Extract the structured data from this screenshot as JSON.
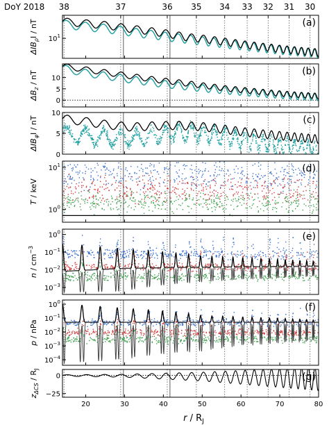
{
  "chart_data": {
    "type": "line",
    "xlabel": "r / R_J",
    "xlim": [
      14,
      80
    ],
    "x_ticks": [
      "20",
      "30",
      "40",
      "50",
      "60",
      "70",
      "80"
    ],
    "top_axis_label": "DoY 2018",
    "top_ticks": [
      {
        "label": "38",
        "r": 14.4
      },
      {
        "label": "37",
        "r": 29.0
      },
      {
        "label": "36",
        "r": 41.0
      },
      {
        "label": "35",
        "r": 48.5
      },
      {
        "label": "34",
        "r": 55.8
      },
      {
        "label": "33",
        "r": 61.6
      },
      {
        "label": "32",
        "r": 67.0
      },
      {
        "label": "31",
        "r": 72.4
      },
      {
        "label": "30",
        "r": 77.8
      }
    ],
    "vertical_markers_r": [
      29.7,
      41.7
    ],
    "dotted_markers_r": [
      14.4,
      29.0,
      41.0,
      48.5,
      55.8,
      61.6,
      67.0,
      72.4,
      77.8
    ],
    "colors": {
      "model": "#000000",
      "data": "#1a9e9e",
      "blue": "#3a6fcf",
      "red": "#d23a3a",
      "green": "#3aa04a"
    },
    "panels": [
      {
        "id": "a",
        "panel_label": "(a)",
        "ylabel_main": "ΔIB",
        "ylabel_sub": "ρ",
        "ylabel_tail": "I / nT",
        "scale": "log",
        "ylim": [
          3,
          40
        ],
        "y_ticks": [
          {
            "v": 10,
            "label": "10",
            "sup": "1"
          }
        ],
        "model": {
          "x": [
            14,
            18,
            22,
            26,
            30,
            34,
            38,
            42,
            46,
            50,
            55,
            60,
            65,
            70,
            75,
            80
          ],
          "y": [
            28,
            26,
            24,
            22,
            19,
            17,
            15,
            13,
            11,
            10,
            8.5,
            7.2,
            6.2,
            5.4,
            4.8,
            4.3
          ],
          "osc": 0.22
        },
        "observed": {
          "x": [
            14,
            18,
            22,
            26,
            30,
            34,
            38,
            42,
            46,
            50,
            55,
            60,
            65,
            70,
            75,
            80
          ],
          "y": [
            24,
            22,
            20,
            18,
            16,
            14,
            12.5,
            11,
            9.8,
            8.8,
            7.6,
            6.6,
            5.8,
            5.1,
            4.6,
            4.2
          ],
          "osc": 0.25
        }
      },
      {
        "id": "b",
        "panel_label": "(b)",
        "ylabel_main": "ΔB",
        "ylabel_sub": "z",
        "ylabel_tail": " / nT",
        "scale": "linear",
        "ylim": [
          -3,
          16
        ],
        "y_ticks": [
          {
            "v": 0,
            "label": "0"
          },
          {
            "v": 5,
            "label": "5"
          },
          {
            "v": 10,
            "label": "10"
          }
        ],
        "zero_line": true,
        "model": {
          "x": [
            14,
            20,
            26,
            32,
            38,
            44,
            50,
            56,
            62,
            68,
            74,
            80
          ],
          "y": [
            15,
            13.5,
            12,
            10.5,
            9,
            7.8,
            6.5,
            5.2,
            4.2,
            3.2,
            2.4,
            1.8
          ],
          "osc": 1.2
        },
        "observed": {
          "x": [
            14,
            20,
            26,
            32,
            38,
            44,
            50,
            56,
            62,
            68,
            74,
            80
          ],
          "y": [
            14,
            12,
            10.5,
            9,
            7.6,
            6.4,
            5.3,
            4.3,
            3.4,
            2.6,
            1.9,
            1.4
          ],
          "osc": 1.6
        }
      },
      {
        "id": "c",
        "panel_label": "(c)",
        "ylabel_main": "ΔIB",
        "ylabel_sub": "φ",
        "ylabel_tail": "I / nT",
        "scale": "linear",
        "ylim": [
          0,
          10
        ],
        "y_ticks": [
          {
            "v": 0,
            "label": "0"
          },
          {
            "v": 5,
            "label": "5"
          },
          {
            "v": 10,
            "label": "10"
          }
        ],
        "model": {
          "x": [
            14,
            20,
            26,
            32,
            38,
            44,
            50,
            56,
            62,
            68,
            74,
            80
          ],
          "y": [
            8.5,
            7.8,
            7.0,
            6.5,
            6.8,
            6.9,
            6.6,
            5.9,
            5.2,
            4.6,
            4.1,
            3.6
          ],
          "osc": 1.0
        },
        "observed": {
          "x": [
            14,
            20,
            26,
            32,
            38,
            44,
            50,
            56,
            62,
            68,
            74,
            80
          ],
          "y": [
            5.0,
            4.5,
            4.0,
            3.8,
            4.5,
            5.5,
            5.0,
            4.2,
            3.2,
            2.5,
            1.8,
            1.2
          ],
          "osc": 1.8
        }
      },
      {
        "id": "d",
        "panel_label": "(d)",
        "ylabel_main": "T",
        "ylabel_tail": " / keV",
        "scale": "log",
        "ylim": [
          0.5,
          14
        ],
        "y_ticks": [
          {
            "v": 1,
            "label": "10",
            "sup": "0"
          },
          {
            "v": 10,
            "label": "10",
            "sup": "1"
          }
        ],
        "model_flat": 0.72,
        "scatter": [
          {
            "name": "blue",
            "center": 7.0,
            "spread": 0.5
          },
          {
            "name": "red",
            "center": 3.0,
            "spread": 0.45
          },
          {
            "name": "green",
            "center": 1.5,
            "spread": 0.35
          }
        ]
      },
      {
        "id": "e",
        "panel_label": "(e)",
        "ylabel_main": "n",
        "ylabel_tail": " / cm",
        "ylabel_sup": "−3",
        "scale": "log",
        "ylim": [
          0.0004,
          2
        ],
        "y_ticks": [
          {
            "v": 0.001,
            "label": "10",
            "sup": "−3"
          },
          {
            "v": 0.01,
            "label": "10",
            "sup": "−2"
          },
          {
            "v": 0.1,
            "label": "10",
            "sup": "−1"
          },
          {
            "v": 1,
            "label": "10",
            "sup": "0"
          }
        ],
        "model_base": {
          "x": [
            14,
            30,
            50,
            80
          ],
          "y": [
            0.008,
            0.012,
            0.014,
            0.016
          ]
        },
        "model_peak": {
          "x": [
            14,
            30,
            50,
            80
          ],
          "y": [
            0.3,
            0.15,
            0.06,
            0.03
          ]
        },
        "model_trough": {
          "x": [
            14,
            30,
            50,
            80
          ],
          "y": [
            0.0005,
            0.0006,
            0.002,
            0.004
          ]
        },
        "scatter": [
          {
            "name": "blue",
            "center": 0.08,
            "spread": 0.5
          },
          {
            "name": "red",
            "center": 0.015,
            "spread": 0.35
          },
          {
            "name": "green",
            "center": 0.004,
            "spread": 0.4
          }
        ]
      },
      {
        "id": "f",
        "panel_label": "(f)",
        "ylabel_main": "p",
        "ylabel_tail": " / nPa",
        "scale": "log",
        "ylim": [
          4e-05,
          2
        ],
        "y_ticks": [
          {
            "v": 0.0001,
            "label": "10",
            "sup": "−4"
          },
          {
            "v": 0.001,
            "label": "10",
            "sup": "−3"
          },
          {
            "v": 0.01,
            "label": "10",
            "sup": "−2"
          },
          {
            "v": 0.1,
            "label": "10",
            "sup": "−1"
          },
          {
            "v": 1,
            "label": "10",
            "sup": "0"
          }
        ],
        "model_base": {
          "x": [
            14,
            30,
            50,
            80
          ],
          "y": [
            0.05,
            0.05,
            0.05,
            0.05
          ]
        },
        "model_peak": {
          "x": [
            14,
            30,
            50,
            80
          ],
          "y": [
            1.0,
            0.5,
            0.15,
            0.07
          ]
        },
        "model_trough": {
          "x": [
            14,
            30,
            50,
            80
          ],
          "y": [
            5e-05,
            0.0001,
            0.0004,
            0.002
          ]
        },
        "scatter": [
          {
            "name": "blue",
            "center": 0.05,
            "spread": 0.45
          },
          {
            "name": "red",
            "center": 0.01,
            "spread": 0.4
          },
          {
            "name": "green",
            "center": 0.003,
            "spread": 0.45
          }
        ]
      },
      {
        "id": "g",
        "panel_label": "(g)",
        "ylabel_main": "z",
        "ylabel_sub": "ΔCS",
        "ylabel_tail": " / R",
        "ylabel_tail_sub": "J",
        "scale": "linear",
        "ylim": [
          -30,
          8
        ],
        "y_ticks": [
          {
            "v": 0,
            "label": "0"
          },
          {
            "v": -25,
            "label": "−25"
          }
        ],
        "zero_line": true,
        "model_osc": {
          "x": [
            14,
            30,
            50,
            80
          ],
          "amp": [
            1,
            2,
            6,
            16
          ]
        }
      }
    ]
  }
}
